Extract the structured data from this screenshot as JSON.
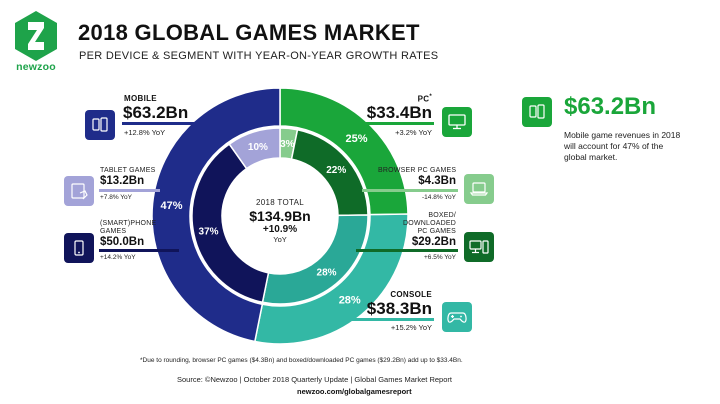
{
  "header": {
    "brand": "newzoo",
    "title": "2018 GLOBAL GAMES MARKET",
    "subtitle": "PER DEVICE & SEGMENT WITH YEAR-ON-YEAR GROWTH RATES"
  },
  "center": {
    "label": "2018 TOTAL",
    "total": "$134.9Bn",
    "growth": "+10.9%",
    "growth_unit": "YoY"
  },
  "segments": {
    "mobile": {
      "label": "MOBILE",
      "value": "$63.2Bn",
      "yoy": "+12.8% YoY"
    },
    "tablet": {
      "label": "TABLET GAMES",
      "value": "$13.2Bn",
      "yoy": "+7.8% YoY"
    },
    "smartphone": {
      "label_line1": "(SMART)PHONE",
      "label_line2": "GAMES",
      "value": "$50.0Bn",
      "yoy": "+14.2% YoY"
    },
    "pc": {
      "label": "PC",
      "label_mark": "*",
      "value": "$33.4Bn",
      "yoy": "+3.2% YoY"
    },
    "browser_pc": {
      "label": "BROWSER PC GAMES",
      "value": "$4.3Bn",
      "yoy": "-14.8% YoY"
    },
    "boxed_pc": {
      "label_line1": "BOXED/",
      "label_line2": "DOWNLOADED",
      "label_line3": "PC GAMES",
      "value": "$29.2Bn",
      "yoy": "+6.5% YoY"
    },
    "console": {
      "label": "CONSOLE",
      "value": "$38.3Bn",
      "yoy": "+15.2% YoY"
    }
  },
  "callout": {
    "value": "$63.2Bn",
    "text": "Mobile game revenues in 2018 will account for 47% of the global market."
  },
  "footer": {
    "note": "*Due to rounding, browser PC games ($4.3Bn) and boxed/downloaded PC games ($29.2Bn) add up to $33.4Bn.",
    "source": "Source: ©Newzoo | October 2018 Quarterly Update | Global Games Market Report",
    "url": "newzoo.com/globalgamesreport"
  },
  "colors": {
    "mobile": "#1f2c8a",
    "tablet": "#a3a3d8",
    "smartphone": "#10145a",
    "pc": "#1aa63a",
    "browser_pc": "#86cc8d",
    "boxed_pc": "#0f6b28",
    "console": "#33b8a5",
    "console_inner": "#2aa897",
    "brand_green": "#1ea34a"
  },
  "icons": {
    "mobile": "two-phones-icon",
    "tablet": "tablet-hand-icon",
    "smartphone": "smartphone-icon",
    "pc": "monitor-icon",
    "browser_pc": "laptop-icon",
    "boxed_pc": "desktop-tower-icon",
    "console": "gamepad-icon",
    "callout": "two-phones-icon"
  },
  "chart_data": {
    "type": "pie",
    "title": "2018 GLOBAL GAMES MARKET",
    "rings": [
      {
        "ring": "outer",
        "categories": [
          "PC",
          "Console",
          "Mobile"
        ],
        "values": [
          33.4,
          38.3,
          63.2
        ],
        "shares": [
          25,
          28,
          47
        ],
        "labels": [
          "25%",
          "28%",
          "47%"
        ]
      },
      {
        "ring": "inner",
        "categories": [
          "Browser PC Games",
          "Boxed/Downloaded PC Games",
          "Console",
          "(Smart)phone Games",
          "Tablet Games"
        ],
        "values": [
          4.3,
          29.2,
          38.3,
          50.0,
          13.2
        ],
        "shares": [
          3,
          22,
          28,
          37,
          10
        ],
        "labels": [
          "3%",
          "22%",
          "28%",
          "37%",
          "10%"
        ]
      }
    ],
    "total": 134.9,
    "unit": "$Bn"
  }
}
